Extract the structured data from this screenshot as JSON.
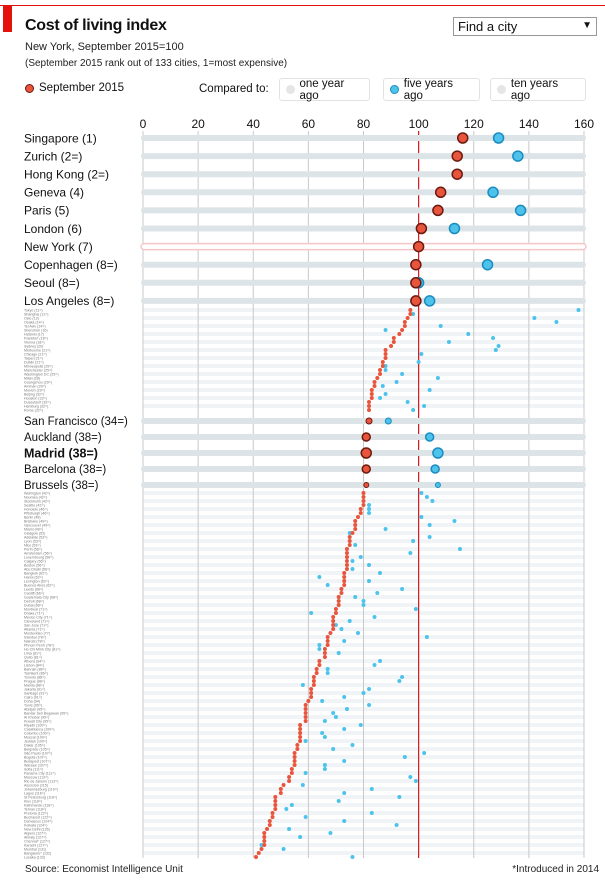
{
  "header": {
    "title": "Cost of living index",
    "subtitle": "New York, September 2015=100",
    "subtitle2": "(September 2015 rank out of 133 cities, 1=most expensive)",
    "find_city": "Find a city",
    "find_arrow": "▼",
    "legend_current": "September 2015",
    "compared_to": "Compared to:",
    "compare_options": [
      {
        "label": "one year ago",
        "active": false
      },
      {
        "label": "five years ago",
        "active": true
      },
      {
        "label": "ten years ago",
        "active": false
      }
    ]
  },
  "footer": {
    "source": "Source: Economist Intelligence Unit",
    "note": "*Introduced in 2014"
  },
  "colors": {
    "accent": "#e3120b",
    "current": "#e8553c",
    "current_border": "#6b1a10",
    "compare": "#4dc3ec",
    "compare_border": "#1b8cc0",
    "inactive": "#e6e6e6",
    "reference_line": "#d7191c",
    "highlight_bar": "#f6c6c6"
  },
  "chart_data": {
    "type": "scatter",
    "title": "Cost of living index",
    "xlim": [
      0,
      160
    ],
    "xticks": [
      0,
      20,
      40,
      60,
      80,
      100,
      120,
      140,
      160
    ],
    "reference": 100,
    "grid": true,
    "series_names": [
      "September 2015",
      "five years ago"
    ],
    "featured": [
      {
        "label": "Singapore (1)",
        "sep2015": 116,
        "five_years_ago": 129
      },
      {
        "label": "Zurich (2=)",
        "sep2015": 114,
        "five_years_ago": 136
      },
      {
        "label": "Hong Kong (2=)",
        "sep2015": 114,
        "five_years_ago": null
      },
      {
        "label": "Geneva (4)",
        "sep2015": 108,
        "five_years_ago": 127
      },
      {
        "label": "Paris (5)",
        "sep2015": 107,
        "five_years_ago": 137
      },
      {
        "label": "London (6)",
        "sep2015": 101,
        "five_years_ago": 113
      },
      {
        "label": "New York (7)",
        "sep2015": 100,
        "five_years_ago": null,
        "highlight": true
      },
      {
        "label": "Copenhagen (8=)",
        "sep2015": 99,
        "five_years_ago": 125
      },
      {
        "label": "Seoul (8=)",
        "sep2015": 99,
        "five_years_ago": 100
      },
      {
        "label": "Los Angeles (8=)",
        "sep2015": 99,
        "five_years_ago": 104
      }
    ],
    "group1": [
      [
        "Tokyo (11=)",
        97,
        158
      ],
      [
        "Shanghai (11=)",
        97,
        98
      ],
      [
        "Oslo (13)",
        96,
        142
      ],
      [
        "Osaka (14=)",
        95,
        150
      ],
      [
        "Tel Aviv (14=)",
        95,
        108
      ],
      [
        "Shenzhen (16)",
        94,
        88
      ],
      [
        "Helsinki (17)",
        93,
        118
      ],
      [
        "Frankfurt (18=)",
        91,
        127
      ],
      [
        "Vienna (18=)",
        91,
        111
      ],
      [
        "Sydney (20)",
        90,
        129
      ],
      [
        "Melbourne (21=)",
        88,
        128
      ],
      [
        "Chicago (21=)",
        88,
        101
      ],
      [
        "Taipei (21=)",
        88,
        null
      ],
      [
        "Dublin (21=)",
        87,
        100
      ],
      [
        "Minneapolis (25=)",
        87,
        88
      ],
      [
        "Manchester (25=)",
        86,
        88
      ],
      [
        "Washington DC (25=)",
        86,
        94
      ],
      [
        "Milan (28)",
        85,
        107
      ],
      [
        "Guangzhou (29=)",
        84,
        92
      ],
      [
        "Amman (29=)",
        84,
        87
      ],
      [
        "Munich (29=)",
        83,
        104
      ],
      [
        "Beijing (32=)",
        83,
        88
      ],
      [
        "Houston (32=)",
        83,
        86
      ],
      [
        "Dusseldorf (32=)",
        82,
        96
      ],
      [
        "Hamburg (32=)",
        82,
        102
      ],
      [
        "Rome (32=)",
        82,
        98
      ]
    ],
    "mid": [
      {
        "label": "San Francisco (34=)",
        "sep2015": 82,
        "five_years_ago": 89,
        "size": "s"
      },
      {
        "label": "Auckland (38=)",
        "sep2015": 81,
        "five_years_ago": 104,
        "size": "m"
      },
      {
        "label": "Madrid (38=)",
        "sep2015": 81,
        "five_years_ago": 107,
        "size": "l",
        "bold": true
      },
      {
        "label": "Barcelona (38=)",
        "sep2015": 81,
        "five_years_ago": 106,
        "size": "m"
      },
      {
        "label": "Brussels (38=)",
        "sep2015": 81,
        "five_years_ago": 107,
        "size": "xs"
      }
    ],
    "group2": [
      [
        "Wellington (42=)",
        80,
        101
      ],
      [
        "Nouméa (42=)",
        80,
        103
      ],
      [
        "Stockholm (42=)",
        80,
        105
      ],
      [
        "Seattle (42=)",
        80,
        82
      ],
      [
        "Honolulu (46=)",
        79,
        82
      ],
      [
        "Pittsburgh (46=)",
        79,
        82
      ],
      [
        "Berlin (48)",
        78,
        101
      ],
      [
        "Brisbane (49=)",
        77,
        113
      ],
      [
        "Vancouver (49=)",
        77,
        104
      ],
      [
        "Miami (49=)",
        77,
        88
      ],
      [
        "Glasgow (52)",
        76,
        75
      ],
      [
        "Adelaide (53=)",
        75,
        104
      ],
      [
        "Lyon (53=)",
        75,
        98
      ],
      [
        "Nice (53=)",
        75,
        77
      ],
      [
        "Perth (56=)",
        74,
        115
      ],
      [
        "Amsterdam (56=)",
        74,
        97
      ],
      [
        "Luxembourg (56=)",
        74,
        79
      ],
      [
        "Calgary (56=)",
        74,
        76
      ],
      [
        "Boston (56=)",
        74,
        82
      ],
      [
        "Abu Dhabi (56=)",
        74,
        76
      ],
      [
        "Bangkok (62=)",
        73,
        86
      ],
      [
        "Hanoi (62=)",
        73,
        64
      ],
      [
        "Lexington (62=)",
        73,
        82
      ],
      [
        "Buenos Aires (62=)",
        73,
        67
      ],
      [
        "Leeds (66=)",
        72,
        94
      ],
      [
        "Cardiff (66=)",
        72,
        85
      ],
      [
        "Guatemala City (68=)",
        71,
        77
      ],
      [
        "Detroit (68=)",
        71,
        80
      ],
      [
        "Dubai (68=)",
        71,
        80
      ],
      [
        "Montreal (71=)",
        70,
        99
      ],
      [
        "Dhaka (71=)",
        70,
        61
      ],
      [
        "Mexico City (71=)",
        69,
        84
      ],
      [
        "Cleveland (71=)",
        69,
        75
      ],
      [
        "San Jose (71=)",
        69,
        70
      ],
      [
        "Atlanta (71=)",
        69,
        72
      ],
      [
        "Montevideo (77)",
        68,
        78
      ],
      [
        "Istanbul (78=)",
        67,
        103
      ],
      [
        "Nairobi (78=)",
        67,
        73
      ],
      [
        "Phnom Penh (78=)",
        67,
        64
      ],
      [
        "Ho Chi Minh City (81=)",
        66,
        64
      ],
      [
        "Lima (81=)",
        66,
        71
      ],
      [
        "Quito (81=)",
        66,
        null
      ],
      [
        "Athens (84=)",
        64,
        86
      ],
      [
        "Lisbon (84=)",
        64,
        84
      ],
      [
        "Bahrain (86=)",
        63,
        67
      ],
      [
        "Tashkent (86=)",
        63,
        67
      ],
      [
        "Toronto (88=)",
        62,
        94
      ],
      [
        "Prague (88=)",
        62,
        93
      ],
      [
        "Manila (88=)",
        62,
        58
      ],
      [
        "Jakarta (91=)",
        61,
        82
      ],
      [
        "Santiago (91=)",
        61,
        80
      ],
      [
        "Cairo (91=)",
        61,
        73
      ],
      [
        "Doha (94)",
        60,
        65
      ],
      [
        "Tunis (95=)",
        59,
        82
      ],
      [
        "Abidjan (95=)",
        59,
        74
      ],
      [
        "Bandar Seri Begawan (95=)",
        59,
        69
      ],
      [
        "Al Khobar (95=)",
        59,
        70
      ],
      [
        "Kuwait City (95=)",
        59,
        66
      ],
      [
        "Riyadh (100=)",
        57,
        79
      ],
      [
        "Casablanca (100=)",
        57,
        73
      ],
      [
        "Colombo (100=)",
        57,
        65
      ],
      [
        "Muscat (100=)",
        57,
        66
      ],
      [
        "Jeddah (100=)",
        57,
        59
      ],
      [
        "Dakar (105=)",
        56,
        76
      ],
      [
        "Belgrade (105=)",
        56,
        69
      ],
      [
        "São Paulo (107=)",
        55,
        102
      ],
      [
        "Bogotá (107=)",
        55,
        95
      ],
      [
        "Budapest (107=)",
        55,
        73
      ],
      [
        "Warsaw (107=)",
        55,
        66
      ],
      [
        "Sofia (111=)",
        54,
        66
      ],
      [
        "Panama City (111=)",
        54,
        59
      ],
      [
        "Moscow (113=)",
        53,
        97
      ],
      [
        "Rio de Janeiro (113=)",
        53,
        99
      ],
      [
        "Asuncion (115)",
        51,
        58
      ],
      [
        "Johannesburg (116=)",
        50,
        83
      ],
      [
        "Lagos (116=)",
        50,
        73
      ],
      [
        "St Petersburg (118=)",
        48,
        93
      ],
      [
        "Kiev (118=)",
        48,
        71
      ],
      [
        "Kathmandu (118=)",
        48,
        54
      ],
      [
        "Tehran (118=)",
        48,
        52
      ],
      [
        "Pretoria (122=)",
        47,
        83
      ],
      [
        "Bucharest (122=)",
        47,
        59
      ],
      [
        "Damascus (124=)",
        46,
        73
      ],
      [
        "Kolkata (124=)",
        46,
        92
      ],
      [
        "New Delhi (126)",
        45,
        53
      ],
      [
        "Algiers (127=)",
        44,
        68
      ],
      [
        "Almaty (127=)",
        44,
        57
      ],
      [
        "Chennai* (127=)",
        44,
        null
      ],
      [
        "Karachi (127=)",
        44,
        43
      ],
      [
        "Mumbai (131)",
        43,
        51
      ],
      [
        "Bangalore* (132)",
        42,
        null
      ],
      [
        "Lusaka (133)",
        41,
        76
      ]
    ]
  }
}
